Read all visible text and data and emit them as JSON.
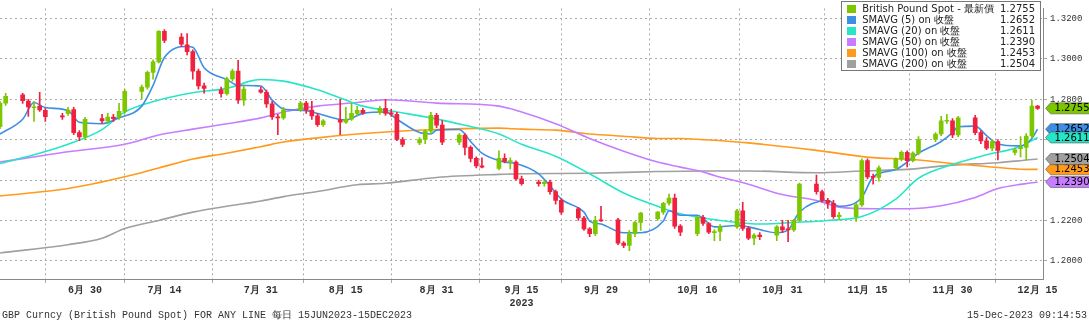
{
  "chart_data": {
    "type": "candlestick",
    "xlabel": "2023",
    "xlim": [
      "2023-06-15",
      "2023-12-15T23:00"
    ],
    "xticks": [
      {
        "value": "2023-06-30",
        "label": "6月 30"
      },
      {
        "value": "2023-07-14",
        "label": "7月 14"
      },
      {
        "value": "2023-07-31",
        "label": "7月 31"
      },
      {
        "value": "2023-08-15",
        "label": "8月 15"
      },
      {
        "value": "2023-08-31",
        "label": "8月 31"
      },
      {
        "value": "2023-09-15",
        "label": "9月 15"
      },
      {
        "value": "2023-09-29",
        "label": "9月 29"
      },
      {
        "value": "2023-10-16",
        "label": "10月 16"
      },
      {
        "value": "2023-10-31",
        "label": "10月 31"
      },
      {
        "value": "2023-11-15",
        "label": "11月 15"
      },
      {
        "value": "2023-11-30",
        "label": "11月 30"
      },
      {
        "value": "2023-12-15",
        "label": "12月 15"
      }
    ],
    "ylim": [
      1.191,
      1.325
    ],
    "yticks": [
      {
        "value": 1.2,
        "label": "1.2000"
      },
      {
        "value": 1.22,
        "label": "1.2200"
      },
      {
        "value": 1.24,
        "label": null
      },
      {
        "value": 1.26,
        "label": null
      },
      {
        "value": 1.28,
        "label": "1.2800"
      },
      {
        "value": 1.3,
        "label": "1.3000"
      },
      {
        "value": 1.32,
        "label": "1.3200"
      }
    ],
    "grid": true,
    "legend": "top right",
    "series": [
      {
        "name": "British Pound Spot - 最新價",
        "colors": [
          "#7dc700",
          "#7dc700",
          "#f0203f",
          "#f0203f",
          "#7dc700",
          "#f0203f",
          "#f0203f",
          "#f0203f",
          "#7dc700",
          "#f0203f",
          "#f0203f",
          "#7dc700",
          "#f0203f",
          "#7dc700",
          "#f0203f",
          "#7dc700",
          "#7dc700",
          "#7dc700",
          "#7dc700",
          "#7dc700",
          "#7dc700",
          "#f0203f",
          "#f0203f",
          "#f0203f",
          "#f0203f",
          "#f0203f",
          "#f0203f",
          "#f0203f",
          "#7dc700",
          "#7dc700",
          "#f0203f",
          "#7dc700",
          "#f0203f",
          "#f0203f",
          "#f0203f",
          "#f0203f",
          "#7dc700",
          "#7dc700",
          "#f0203f",
          "#f0203f",
          "#f0203f",
          "#7dc700",
          "#f0203f",
          "#7dc700",
          "#7dc700",
          "#7dc700",
          "#f0203f",
          "#7dc700",
          "#f0203f",
          "#f0203f",
          "#f0203f",
          "#f0203f",
          "#7dc700",
          "#7dc700",
          "#7dc700",
          "#f0203f",
          "#f0203f",
          "#7dc700",
          "#f0203f",
          "#f0203f",
          "#f0203f",
          "#f0203f",
          "#7dc700",
          "#f0203f",
          "#7dc700",
          "#f0203f",
          "#f0203f",
          "#f0203f",
          "#7dc700",
          "#f0203f",
          "#f0203f",
          "#f0203f",
          "#f0203f",
          "#f0203f",
          "#f0203f",
          "#7dc700",
          "#f0203f",
          "#f0203f",
          "#f0203f",
          "#7dc700",
          "#7dc700",
          "#7dc700",
          "#7dc700",
          "#7dc700",
          "#7dc700",
          "#f0203f",
          "#f0203f",
          "#7dc700",
          "#f0203f",
          "#f0203f",
          "#7dc700",
          "#7dc700",
          "#7dc700",
          "#f0203f",
          "#f0203f",
          "#7dc700",
          "#f0203f",
          "#7dc700",
          "#f0203f",
          "#f0203f",
          "#7dc700",
          "#7dc700",
          "#f0203f",
          "#f0203f",
          "#f0203f",
          "#f0203f",
          "#7dc700",
          "#7dc700",
          "#7dc700",
          "#f0203f",
          "#f0203f",
          "#7dc700",
          "#7dc700",
          "#7dc700",
          "#f0203f",
          "#7dc700",
          "#7dc700",
          "#7dc700",
          "#7dc700",
          "#7dc700",
          "#f0203f",
          "#7dc700",
          "#f0203f",
          "#f0203f",
          "#f0203f",
          "#7dc700",
          "#f0203f",
          "#7dc700",
          "#7dc700",
          "#7dc700",
          "#7dc700",
          "#f0203f"
        ],
        "x": [
          "2023-06-15",
          "2023-06-16",
          "2023-06-19",
          "2023-06-20",
          "2023-06-21",
          "2023-06-22",
          "2023-06-23",
          "2023-06-26",
          "2023-06-27",
          "2023-06-28",
          "2023-06-29",
          "2023-06-30",
          "2023-07-03",
          "2023-07-04",
          "2023-07-05",
          "2023-07-06",
          "2023-07-07",
          "2023-07-10",
          "2023-07-11",
          "2023-07-12",
          "2023-07-13",
          "2023-07-14",
          "2023-07-17",
          "2023-07-18",
          "2023-07-19",
          "2023-07-20",
          "2023-07-21",
          "2023-07-24",
          "2023-07-25",
          "2023-07-26",
          "2023-07-27",
          "2023-07-28",
          "2023-07-31",
          "2023-08-01",
          "2023-08-02",
          "2023-08-03",
          "2023-08-04",
          "2023-08-07",
          "2023-08-08",
          "2023-08-09",
          "2023-08-10",
          "2023-08-11",
          "2023-08-14",
          "2023-08-15",
          "2023-08-16",
          "2023-08-17",
          "2023-08-18",
          "2023-08-21",
          "2023-08-22",
          "2023-08-23",
          "2023-08-24",
          "2023-08-25",
          "2023-08-28",
          "2023-08-29",
          "2023-08-30",
          "2023-08-31",
          "2023-09-01",
          "2023-09-04",
          "2023-09-05",
          "2023-09-06",
          "2023-09-07",
          "2023-09-08",
          "2023-09-11",
          "2023-09-12",
          "2023-09-13",
          "2023-09-14",
          "2023-09-15",
          "2023-09-18",
          "2023-09-19",
          "2023-09-20",
          "2023-09-21",
          "2023-09-22",
          "2023-09-25",
          "2023-09-26",
          "2023-09-27",
          "2023-09-28",
          "2023-09-29",
          "2023-10-02",
          "2023-10-03",
          "2023-10-04",
          "2023-10-05",
          "2023-10-06",
          "2023-10-09",
          "2023-10-10",
          "2023-10-11",
          "2023-10-12",
          "2023-10-13",
          "2023-10-16",
          "2023-10-17",
          "2023-10-18",
          "2023-10-19",
          "2023-10-20",
          "2023-10-23",
          "2023-10-24",
          "2023-10-25",
          "2023-10-26",
          "2023-10-27",
          "2023-10-30",
          "2023-10-31",
          "2023-11-01",
          "2023-11-02",
          "2023-11-03",
          "2023-11-06",
          "2023-11-07",
          "2023-11-08",
          "2023-11-09",
          "2023-11-10",
          "2023-11-13",
          "2023-11-14",
          "2023-11-15",
          "2023-11-16",
          "2023-11-17",
          "2023-11-20",
          "2023-11-21",
          "2023-11-22",
          "2023-11-23",
          "2023-11-24",
          "2023-11-27",
          "2023-11-28",
          "2023-11-29",
          "2023-11-30",
          "2023-12-01",
          "2023-12-04",
          "2023-12-05",
          "2023-12-06",
          "2023-12-07",
          "2023-12-08",
          "2023-12-11",
          "2023-12-12",
          "2023-12-13",
          "2023-12-14",
          "2023-12-15"
        ],
        "ohlc": [
          [
            1.2664,
            1.279,
            1.2655,
            1.2781
          ],
          [
            1.2781,
            1.283,
            1.277,
            1.2815
          ],
          [
            1.2822,
            1.283,
            1.278,
            1.2793
          ],
          [
            1.2791,
            1.28,
            1.2715,
            1.2762
          ],
          [
            1.2758,
            1.279,
            1.269,
            1.2762
          ],
          [
            1.2766,
            1.2835,
            1.274,
            1.2747
          ],
          [
            1.2745,
            1.2755,
            1.269,
            1.2714
          ],
          [
            1.2718,
            1.273,
            1.27,
            1.2713
          ],
          [
            1.273,
            1.276,
            1.272,
            1.2747
          ],
          [
            1.2749,
            1.276,
            1.2625,
            1.2635
          ],
          [
            1.2635,
            1.2645,
            1.2595,
            1.2613
          ],
          [
            1.2613,
            1.271,
            1.26,
            1.2701
          ],
          [
            1.2704,
            1.2725,
            1.268,
            1.2693
          ],
          [
            1.2693,
            1.273,
            1.268,
            1.2712
          ],
          [
            1.2712,
            1.2725,
            1.269,
            1.2704
          ],
          [
            1.2712,
            1.278,
            1.27,
            1.274
          ],
          [
            1.274,
            1.285,
            1.273,
            1.2839
          ],
          [
            1.2839,
            1.287,
            1.28,
            1.286
          ],
          [
            1.286,
            1.294,
            1.285,
            1.2933
          ],
          [
            1.2933,
            1.2995,
            1.29,
            1.2985
          ],
          [
            1.2985,
            1.314,
            1.298,
            1.3136
          ],
          [
            1.3136,
            1.3145,
            1.308,
            1.3092
          ],
          [
            1.3108,
            1.3125,
            1.306,
            1.3073
          ],
          [
            1.307,
            1.3125,
            1.302,
            1.3036
          ],
          [
            1.3036,
            1.3045,
            1.29,
            1.2939
          ],
          [
            1.2939,
            1.295,
            1.285,
            1.2866
          ],
          [
            1.2866,
            1.288,
            1.283,
            1.2854
          ],
          [
            1.2847,
            1.286,
            1.281,
            1.2828
          ],
          [
            1.2828,
            1.291,
            1.282,
            1.2901
          ],
          [
            1.2901,
            1.295,
            1.289,
            1.2939
          ],
          [
            1.2939,
            1.2993,
            1.278,
            1.2796
          ],
          [
            1.2796,
            1.287,
            1.277,
            1.2851
          ],
          [
            1.2847,
            1.286,
            1.283,
            1.2835
          ],
          [
            1.2835,
            1.2845,
            1.276,
            1.2777
          ],
          [
            1.2777,
            1.279,
            1.27,
            1.2712
          ],
          [
            1.2713,
            1.2725,
            1.2625,
            1.2708
          ],
          [
            1.2708,
            1.276,
            1.27,
            1.2747
          ],
          [
            1.2747,
            1.279,
            1.274,
            1.2781
          ],
          [
            1.2781,
            1.279,
            1.273,
            1.2747
          ],
          [
            1.2747,
            1.279,
            1.27,
            1.2718
          ],
          [
            1.2718,
            1.273,
            1.2665,
            1.2674
          ],
          [
            1.2674,
            1.27,
            1.2665,
            1.2693
          ],
          [
            1.2698,
            1.28,
            1.2625,
            1.2686
          ],
          [
            1.2686,
            1.276,
            1.268,
            1.2701
          ],
          [
            1.2701,
            1.278,
            1.2695,
            1.273
          ],
          [
            1.273,
            1.2765,
            1.272,
            1.2745
          ],
          [
            1.2745,
            1.2755,
            1.2725,
            1.2733
          ],
          [
            1.2735,
            1.2765,
            1.2725,
            1.2755
          ],
          [
            1.2755,
            1.28,
            1.272,
            1.273
          ],
          [
            1.2733,
            1.275,
            1.2715,
            1.2726
          ],
          [
            1.2726,
            1.2735,
            1.2595,
            1.2601
          ],
          [
            1.2601,
            1.261,
            1.2565,
            1.2577
          ],
          [
            1.2584,
            1.261,
            1.2575,
            1.2601
          ],
          [
            1.2601,
            1.265,
            1.258,
            1.2642
          ],
          [
            1.2642,
            1.2735,
            1.263,
            1.272
          ],
          [
            1.272,
            1.273,
            1.266,
            1.2672
          ],
          [
            1.2672,
            1.2695,
            1.2575,
            1.2588
          ],
          [
            1.2588,
            1.263,
            1.2575,
            1.2623
          ],
          [
            1.2623,
            1.263,
            1.2525,
            1.2562
          ],
          [
            1.2562,
            1.257,
            1.249,
            1.2507
          ],
          [
            1.2507,
            1.2515,
            1.246,
            1.247
          ],
          [
            1.247,
            1.251,
            1.246,
            1.2464
          ],
          [
            1.2457,
            1.2545,
            1.245,
            1.2507
          ],
          [
            1.2507,
            1.253,
            1.2485,
            1.2492
          ],
          [
            1.2492,
            1.251,
            1.2455,
            1.2495
          ],
          [
            1.2489,
            1.2495,
            1.24,
            1.2406
          ],
          [
            1.2406,
            1.242,
            1.2375,
            1.2382
          ],
          [
            1.239,
            1.24,
            1.237,
            1.2382
          ],
          [
            1.2382,
            1.24,
            1.237,
            1.239
          ],
          [
            1.239,
            1.24,
            1.233,
            1.2343
          ],
          [
            1.2343,
            1.235,
            1.228,
            1.2299
          ],
          [
            1.2299,
            1.231,
            1.223,
            1.2241
          ],
          [
            1.2258,
            1.2265,
            1.22,
            1.2212
          ],
          [
            1.2212,
            1.222,
            1.215,
            1.2158
          ],
          [
            1.2158,
            1.2165,
            1.212,
            1.2134
          ],
          [
            1.2134,
            1.222,
            1.2125,
            1.22
          ],
          [
            1.2203,
            1.227,
            1.2195,
            1.2197
          ],
          [
            1.2203,
            1.221,
            1.208,
            1.2088
          ],
          [
            1.2088,
            1.2095,
            1.2065,
            1.2076
          ],
          [
            1.2076,
            1.215,
            1.205,
            1.2134
          ],
          [
            1.2134,
            1.2195,
            1.212,
            1.219
          ],
          [
            1.219,
            1.224,
            1.215,
            1.2237
          ],
          [
            1.2209,
            1.2245,
            1.22,
            1.2241
          ],
          [
            1.2241,
            1.229,
            1.223,
            1.2285
          ],
          [
            1.2285,
            1.233,
            1.2275,
            1.2311
          ],
          [
            1.2311,
            1.233,
            1.216,
            1.2172
          ],
          [
            1.2172,
            1.218,
            1.2125,
            1.2142
          ],
          [
            1.2134,
            1.222,
            1.2125,
            1.2215
          ],
          [
            1.2215,
            1.2225,
            1.2175,
            1.2185
          ],
          [
            1.2185,
            1.219,
            1.2135,
            1.2142
          ],
          [
            1.214,
            1.2155,
            1.21,
            1.2142
          ],
          [
            1.2146,
            1.218,
            1.21,
            1.2168
          ],
          [
            1.2168,
            1.2255,
            1.216,
            1.2248
          ],
          [
            1.2248,
            1.229,
            1.215,
            1.2161
          ],
          [
            1.2161,
            1.217,
            1.2105,
            1.2112
          ],
          [
            1.2112,
            1.2135,
            1.208,
            1.2127
          ],
          [
            1.2127,
            1.214,
            1.2105,
            1.212
          ],
          [
            1.2127,
            1.2175,
            1.21,
            1.2168
          ],
          [
            1.2168,
            1.22,
            1.214,
            1.2153
          ],
          [
            1.2158,
            1.22,
            1.2095,
            1.2153
          ],
          [
            1.2153,
            1.2205,
            1.2145,
            1.22
          ],
          [
            1.22,
            1.2385,
            1.2195,
            1.238
          ],
          [
            1.238,
            1.2425,
            1.233,
            1.2343
          ],
          [
            1.2343,
            1.235,
            1.229,
            1.2299
          ],
          [
            1.2299,
            1.231,
            1.226,
            1.2285
          ],
          [
            1.2285,
            1.23,
            1.221,
            1.2219
          ],
          [
            1.2219,
            1.224,
            1.2205,
            1.2226
          ],
          [
            1.2219,
            1.2285,
            1.2195,
            1.2277
          ],
          [
            1.2277,
            1.2505,
            1.227,
            1.2496
          ],
          [
            1.2496,
            1.2505,
            1.2405,
            1.2416
          ],
          [
            1.2419,
            1.243,
            1.238,
            1.2413
          ],
          [
            1.2413,
            1.247,
            1.2395,
            1.246
          ],
          [
            1.246,
            1.251,
            1.245,
            1.2504
          ],
          [
            1.2504,
            1.2545,
            1.2495,
            1.2537
          ],
          [
            1.2537,
            1.2545,
            1.2465,
            1.2496
          ],
          [
            1.2496,
            1.254,
            1.249,
            1.2533
          ],
          [
            1.2533,
            1.2615,
            1.2525,
            1.2601
          ],
          [
            1.2601,
            1.2635,
            1.259,
            1.2628
          ],
          [
            1.2628,
            1.2715,
            1.262,
            1.2693
          ],
          [
            1.2691,
            1.2725,
            1.268,
            1.2695
          ],
          [
            1.2693,
            1.2705,
            1.261,
            1.2623
          ],
          [
            1.2623,
            1.2715,
            1.2615,
            1.2708
          ],
          [
            1.2708,
            1.272,
            1.2625,
            1.2635
          ],
          [
            1.2635,
            1.2645,
            1.258,
            1.2594
          ],
          [
            1.2594,
            1.261,
            1.255,
            1.2558
          ],
          [
            1.2558,
            1.26,
            1.2545,
            1.2591
          ],
          [
            1.2591,
            1.26,
            1.25,
            1.2547
          ],
          [
            1.2537,
            1.256,
            1.2525,
            1.255
          ],
          [
            1.2555,
            1.2615,
            1.2515,
            1.2562
          ],
          [
            1.2562,
            1.263,
            1.25,
            1.2618
          ],
          [
            1.2618,
            1.2795,
            1.261,
            1.2766
          ],
          [
            1.2766,
            1.277,
            1.275,
            1.2755
          ]
        ]
      },
      {
        "name": "SMAVG (5) on 收盤",
        "type": "line",
        "color": "#3d8fe6",
        "x": [
          "2023-06-15",
          "2023-06-19",
          "2023-06-21",
          "2023-06-23",
          "2023-06-27",
          "2023-06-29",
          "2023-07-03",
          "2023-07-06",
          "2023-07-10",
          "2023-07-12",
          "2023-07-14",
          "2023-07-18",
          "2023-07-19",
          "2023-07-21",
          "2023-07-25",
          "2023-07-27",
          "2023-07-31",
          "2023-08-02",
          "2023-08-04",
          "2023-08-08",
          "2023-08-10",
          "2023-08-15",
          "2023-08-18",
          "2023-08-22",
          "2023-08-24",
          "2023-08-28",
          "2023-08-30",
          "2023-08-31",
          "2023-09-04",
          "2023-09-06",
          "2023-09-08",
          "2023-09-12",
          "2023-09-14",
          "2023-09-18",
          "2023-09-20",
          "2023-09-22",
          "2023-09-26",
          "2023-09-27",
          "2023-09-29",
          "2023-10-03",
          "2023-10-06",
          "2023-10-10",
          "2023-10-11",
          "2023-10-13",
          "2023-10-16",
          "2023-10-19",
          "2023-10-23",
          "2023-10-25",
          "2023-10-30",
          "2023-11-01",
          "2023-11-03",
          "2023-11-08",
          "2023-11-10",
          "2023-11-14",
          "2023-11-16",
          "2023-11-20",
          "2023-11-22",
          "2023-11-24",
          "2023-11-28",
          "2023-11-30",
          "2023-12-01",
          "2023-12-04",
          "2023-12-06",
          "2023-12-08",
          "2023-12-12",
          "2023-12-14",
          "2023-12-15"
        ],
        "values": [
          1.2628,
          1.2701,
          1.2784,
          1.2759,
          1.2744,
          1.2686,
          1.2679,
          1.2708,
          1.2766,
          1.2869,
          1.3007,
          1.3061,
          1.3058,
          1.2956,
          1.2898,
          1.2869,
          1.2866,
          1.2796,
          1.2752,
          1.2744,
          1.273,
          1.2698,
          1.273,
          1.2737,
          1.2701,
          1.2635,
          1.2628,
          1.2647,
          1.265,
          1.2591,
          1.2533,
          1.2489,
          1.2482,
          1.2431,
          1.2372,
          1.2306,
          1.2241,
          1.2197,
          1.2182,
          1.2139,
          1.2139,
          1.2197,
          1.2248,
          1.2226,
          1.2226,
          1.2168,
          1.2175,
          1.2168,
          1.2139,
          1.2153,
          1.2241,
          1.2299,
          1.227,
          1.2314,
          1.2416,
          1.2452,
          1.2489,
          1.2533,
          1.2591,
          1.2635,
          1.2664,
          1.2667,
          1.262,
          1.2579,
          1.2569,
          1.2606,
          1.2652
        ]
      },
      {
        "name": "SMAVG (20) on 收盤",
        "type": "line",
        "color": "#27e6c8",
        "x": [
          "2023-06-15",
          "2023-06-21",
          "2023-06-27",
          "2023-07-03",
          "2023-07-07",
          "2023-07-13",
          "2023-07-19",
          "2023-07-25",
          "2023-07-31",
          "2023-08-04",
          "2023-08-10",
          "2023-08-15",
          "2023-08-18",
          "2023-08-24",
          "2023-08-30",
          "2023-09-05",
          "2023-09-11",
          "2023-09-15",
          "2023-09-21",
          "2023-09-27",
          "2023-10-03",
          "2023-10-09",
          "2023-10-13",
          "2023-10-17",
          "2023-10-23",
          "2023-10-27",
          "2023-11-02",
          "2023-11-08",
          "2023-11-14",
          "2023-11-20",
          "2023-11-24",
          "2023-11-30",
          "2023-12-06",
          "2023-12-12",
          "2023-12-15"
        ],
        "values": [
          1.2482,
          1.2525,
          1.2577,
          1.265,
          1.2737,
          1.2796,
          1.2832,
          1.2854,
          1.2898,
          1.289,
          1.2847,
          1.2796,
          1.2766,
          1.2737,
          1.2708,
          1.2671,
          1.2628,
          1.2577,
          1.2518,
          1.2431,
          1.2336,
          1.227,
          1.2233,
          1.2212,
          1.219,
          1.2182,
          1.219,
          1.22,
          1.2219,
          1.2306,
          1.2409,
          1.2477,
          1.2525,
          1.2566,
          1.2611
        ]
      },
      {
        "name": "SMAVG (50) on 收盤",
        "type": "line",
        "color": "#c77dff",
        "x": [
          "2023-06-15",
          "2023-06-27",
          "2023-07-07",
          "2023-07-13",
          "2023-07-19",
          "2023-07-25",
          "2023-07-31",
          "2023-08-04",
          "2023-08-10",
          "2023-08-17",
          "2023-08-22",
          "2023-08-31",
          "2023-09-11",
          "2023-09-15",
          "2023-09-21",
          "2023-09-27",
          "2023-10-03",
          "2023-10-09",
          "2023-10-13",
          "2023-10-17",
          "2023-10-19",
          "2023-10-25",
          "2023-10-31",
          "2023-11-06",
          "2023-11-10",
          "2023-11-16",
          "2023-11-22",
          "2023-11-28",
          "2023-12-04",
          "2023-12-08",
          "2023-12-15"
        ],
        "values": [
          1.2489,
          1.254,
          1.2577,
          1.2623,
          1.2652,
          1.2679,
          1.2708,
          1.2737,
          1.2766,
          1.2784,
          1.2798,
          1.2781,
          1.2766,
          1.2737,
          1.2679,
          1.2606,
          1.2543,
          1.2489,
          1.2464,
          1.244,
          1.2423,
          1.2379,
          1.2328,
          1.2299,
          1.2266,
          1.2258,
          1.2258,
          1.2273,
          1.2314,
          1.2358,
          1.239
        ]
      },
      {
        "name": "SMAVG (100) on 收盤",
        "type": "line",
        "color": "#ff9a1a",
        "x": [
          "2023-06-15",
          "2023-06-27",
          "2023-07-07",
          "2023-07-13",
          "2023-07-19",
          "2023-07-25",
          "2023-07-31",
          "2023-08-04",
          "2023-08-10",
          "2023-08-17",
          "2023-08-22",
          "2023-08-31",
          "2023-09-11",
          "2023-09-15",
          "2023-09-21",
          "2023-09-27",
          "2023-10-03",
          "2023-10-09",
          "2023-10-13",
          "2023-10-17",
          "2023-10-25",
          "2023-11-06",
          "2023-11-16",
          "2023-11-22",
          "2023-11-30",
          "2023-12-06",
          "2023-12-13",
          "2023-12-15"
        ],
        "values": [
          1.2321,
          1.2358,
          1.2416,
          1.246,
          1.2504,
          1.2533,
          1.2565,
          1.2588,
          1.2609,
          1.2628,
          1.2638,
          1.265,
          1.2657,
          1.2652,
          1.2647,
          1.2628,
          1.2617,
          1.2606,
          1.2606,
          1.26,
          1.2584,
          1.2547,
          1.2511,
          1.2504,
          1.2482,
          1.2467,
          1.2453,
          1.2453
        ]
      },
      {
        "name": "SMAVG (200) on 收盤",
        "type": "line",
        "color": "#a0a0a0",
        "x": [
          "2023-06-15",
          "2023-06-27",
          "2023-07-03",
          "2023-07-07",
          "2023-07-13",
          "2023-07-19",
          "2023-07-25",
          "2023-07-31",
          "2023-08-04",
          "2023-08-10",
          "2023-08-17",
          "2023-08-22",
          "2023-08-31",
          "2023-09-11",
          "2023-09-15",
          "2023-09-27",
          "2023-10-09",
          "2023-10-17",
          "2023-10-25",
          "2023-11-06",
          "2023-11-14",
          "2023-11-22",
          "2023-11-30",
          "2023-12-08",
          "2023-12-15"
        ],
        "values": [
          1.2039,
          1.208,
          1.2112,
          1.216,
          1.22,
          1.2241,
          1.227,
          1.2296,
          1.2318,
          1.2343,
          1.2377,
          1.2384,
          1.2413,
          1.2428,
          1.2431,
          1.2434,
          1.2442,
          1.2445,
          1.2445,
          1.2436,
          1.2445,
          1.2453,
          1.2474,
          1.2486,
          1.2504
        ]
      }
    ],
    "annotations": [
      "1.2755",
      "1.2652",
      "1.2611",
      "1.2390",
      "1.2453",
      "1.2504",
      "GBP Curncy (British Pound Spot) FOR ANY LINE  每日 15JUN2023-15DEC2023",
      "15-Dec-2023 09:14:53"
    ]
  }
}
